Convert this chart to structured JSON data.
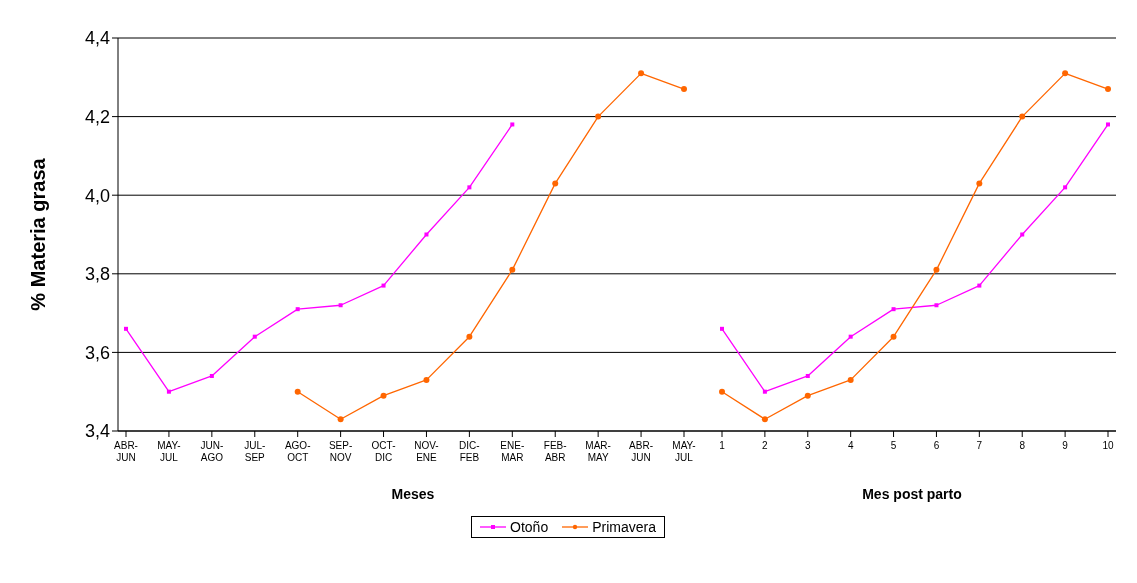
{
  "chart_data": [
    {
      "type": "line",
      "xlabel": "Meses",
      "ylabel": "% Materia grasa",
      "categories": [
        "ABR-JUN",
        "MAY-JUL",
        "JUN-AGO",
        "JUL-SEP",
        "AGO-OCT",
        "SEP-NOV",
        "OCT-DIC",
        "NOV-ENE",
        "DIC-FEB",
        "ENE-MAR",
        "FEB-ABR",
        "MAR-MAY",
        "ABR-JUN",
        "MAY-JUL"
      ],
      "series": [
        {
          "name": "Otoño",
          "color": "#ff00ff",
          "marker": "square",
          "values": [
            3.66,
            3.5,
            3.54,
            3.64,
            3.71,
            3.72,
            3.77,
            3.9,
            4.02,
            4.18,
            null,
            null,
            null,
            null
          ]
        },
        {
          "name": "Primavera",
          "color": "#ff6600",
          "marker": "circle",
          "values": [
            null,
            null,
            null,
            null,
            3.5,
            3.43,
            3.49,
            3.53,
            3.64,
            3.81,
            4.03,
            4.2,
            4.31,
            4.27
          ]
        }
      ],
      "ylim": [
        3.4,
        4.4
      ],
      "yticks": [
        {
          "value": 3.4,
          "label": "3,4"
        },
        {
          "value": 3.6,
          "label": "3,6"
        },
        {
          "value": 3.8,
          "label": "3,8"
        },
        {
          "value": 4.0,
          "label": "4,0"
        },
        {
          "value": 4.2,
          "label": "4,2"
        },
        {
          "value": 4.4,
          "label": "4,4"
        }
      ],
      "grid": "y",
      "legend": "bottom"
    },
    {
      "type": "line",
      "xlabel": "Mes post parto",
      "categories": [
        "1",
        "2",
        "3",
        "4",
        "5",
        "6",
        "7",
        "8",
        "9",
        "10"
      ],
      "series": [
        {
          "color": "#ff00ff",
          "marker": "square",
          "values": [
            3.66,
            3.5,
            3.54,
            3.64,
            3.71,
            3.72,
            3.77,
            3.9,
            4.02,
            4.18
          ]
        },
        {
          "color": "#ff6600",
          "marker": "circle",
          "values": [
            3.5,
            3.43,
            3.49,
            3.53,
            3.64,
            3.81,
            4.03,
            4.2,
            4.31,
            4.27
          ]
        }
      ],
      "ylim": [
        3.4,
        4.4
      ],
      "yticks": [
        3.4,
        3.6,
        3.8,
        4.0,
        4.2,
        4.4
      ],
      "grid": "y",
      "tick_labels": "x"
    }
  ]
}
